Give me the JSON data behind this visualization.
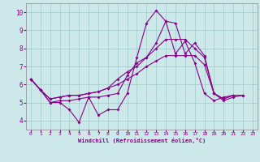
{
  "xlabel": "Windchill (Refroidissement éolien,°C)",
  "bg_color": "#cce8e8",
  "line_color": "#880088",
  "grid_color": "#99cccc",
  "xlim": [
    -0.5,
    23.5
  ],
  "ylim": [
    3.5,
    10.5
  ],
  "yticks": [
    4,
    5,
    6,
    7,
    8,
    9,
    10
  ],
  "xticks": [
    0,
    1,
    2,
    3,
    4,
    5,
    6,
    7,
    8,
    9,
    10,
    11,
    12,
    13,
    14,
    15,
    16,
    17,
    18,
    19,
    20,
    21,
    22,
    23
  ],
  "lines": [
    [
      6.3,
      5.7,
      5.0,
      5.0,
      4.6,
      3.9,
      5.3,
      4.3,
      4.6,
      4.6,
      5.5,
      7.5,
      9.4,
      10.1,
      9.5,
      7.7,
      8.4,
      7.2,
      5.5,
      5.1,
      5.3,
      5.4,
      5.4,
      null
    ],
    [
      6.3,
      5.7,
      5.0,
      5.1,
      5.1,
      5.2,
      5.3,
      5.3,
      5.4,
      5.5,
      6.5,
      7.2,
      7.5,
      8.3,
      9.5,
      9.4,
      7.7,
      8.3,
      7.6,
      5.5,
      5.1,
      5.3,
      5.4,
      null
    ],
    [
      6.3,
      5.7,
      5.2,
      5.3,
      5.4,
      5.4,
      5.5,
      5.6,
      5.8,
      6.3,
      6.7,
      7.0,
      7.5,
      8.0,
      8.5,
      8.5,
      8.5,
      8.0,
      7.5,
      5.5,
      5.2,
      5.4,
      null,
      null
    ],
    [
      6.3,
      5.7,
      5.2,
      5.3,
      5.4,
      5.4,
      5.5,
      5.6,
      5.8,
      6.0,
      6.3,
      6.6,
      7.0,
      7.3,
      7.6,
      7.6,
      7.6,
      7.6,
      7.1,
      5.5,
      5.2,
      5.4,
      null,
      null
    ]
  ]
}
